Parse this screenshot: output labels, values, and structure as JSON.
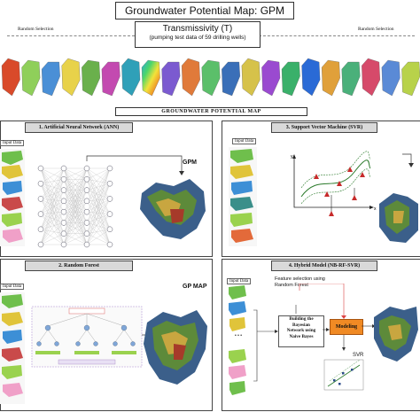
{
  "title": "Groundwater Potential Map: GPM",
  "random_selection_left": "Random Selection",
  "random_selection_right": "Random Selection",
  "transmissivity": {
    "title": "Transmissivity (T)",
    "subtitle": "(pumping test data of 59 drilling wells)"
  },
  "gpm_bar": "GROUNDWATER POTENTIAL MAP",
  "panels": {
    "ann": {
      "heading": "1.   Artificial Neural Network (ANN)",
      "input": "Input Data",
      "output": "GPM"
    },
    "svr": {
      "heading": "3.   Support Vector Machine (SVR)",
      "input": "Input Data"
    },
    "rf": {
      "heading": "2.   Random Forest",
      "input": "Input Data",
      "output": "GP MAP"
    },
    "hybrid": {
      "heading": "4.   Hybrid Model (NB-RF-SVR)",
      "input": "Input Data",
      "feature1": "Feature selection using",
      "feature2": "Random Forest",
      "bayes1": "Building the",
      "bayes2": "Bayesian",
      "bayes3": "Network using",
      "bayes4": "Naive Bayes",
      "modeling": "Modeling",
      "svr": "SVR",
      "dots": "• • •"
    }
  },
  "colors": {
    "modeling": "#f08a24",
    "panel_head": "#d9d9d9"
  }
}
